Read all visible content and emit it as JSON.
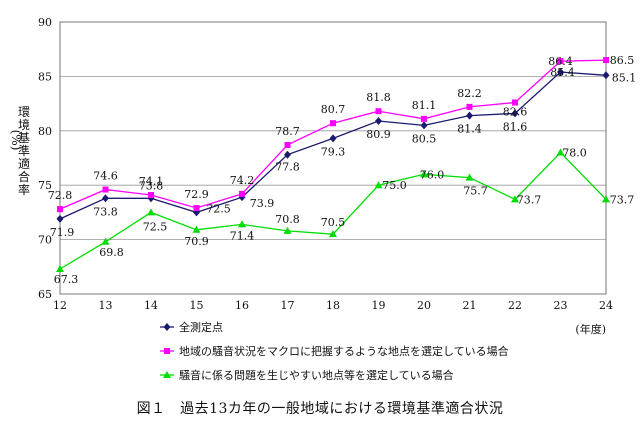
{
  "chart_data": {
    "type": "line",
    "x": [
      12,
      13,
      14,
      15,
      16,
      17,
      18,
      19,
      20,
      21,
      22,
      23,
      24
    ],
    "xlabel": "(年度)",
    "ylabel_chars": [
      "環",
      "境",
      "基",
      "準",
      "適",
      "合",
      "率"
    ],
    "ylabel_unit": "(%)",
    "ylim": [
      65,
      90
    ],
    "yticks": [
      65,
      70,
      75,
      80,
      85,
      90
    ],
    "grid": true,
    "legend_placement": "bottom-left",
    "series": [
      {
        "name": "全測定点",
        "color": "#1a1a6e",
        "marker": "diamond",
        "values": [
          71.9,
          73.8,
          73.8,
          72.5,
          73.9,
          77.8,
          79.3,
          80.9,
          80.5,
          81.4,
          81.6,
          85.4,
          85.1
        ],
        "labels": [
          "71.9",
          "73.8",
          "73.8",
          "72.5",
          "73.9",
          "77.8",
          "79.3",
          "80.9",
          "80.5",
          "81.4",
          "81.6",
          "85.4",
          "85.1"
        ]
      },
      {
        "name": "地域の騒音状況をマクロに把握するような地点を選定している場合",
        "color": "#ff00ff",
        "marker": "square",
        "values": [
          72.8,
          74.6,
          74.1,
          72.9,
          74.2,
          78.7,
          80.7,
          81.8,
          81.1,
          82.2,
          82.6,
          86.4,
          86.5
        ],
        "labels": [
          "72.8",
          "74.6",
          "74.1",
          "72.9",
          "74.2",
          "78.7",
          "80.7",
          "81.8",
          "81.1",
          "82.2",
          "82.6",
          "86.4",
          "86.5"
        ]
      },
      {
        "name": "騒音に係る問題を生じやすい地点等を選定している場合",
        "color": "#00dd00",
        "marker": "triangle",
        "values": [
          67.3,
          69.8,
          72.5,
          70.9,
          71.4,
          70.8,
          70.5,
          75.0,
          76.0,
          75.7,
          73.7,
          78.0,
          73.7
        ],
        "labels": [
          "67.3",
          "69.8",
          "72.5",
          "70.9",
          "71.4",
          "70.8",
          "70.5",
          "75.0",
          "76.0",
          "75.7",
          "73.7",
          "78.0",
          "73.7"
        ]
      }
    ]
  },
  "caption": "図１　過去13カ年の一般地域における環境基準適合状況"
}
